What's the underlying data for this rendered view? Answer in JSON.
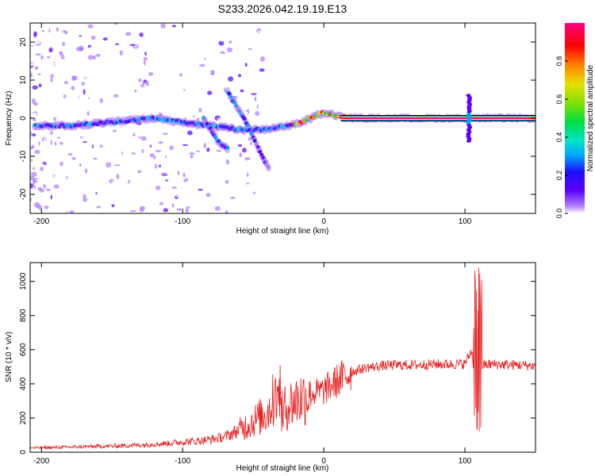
{
  "title": "S233.2026.042.19.19.E13",
  "chart_data": [
    {
      "type": "heatmap",
      "xlabel": "Height of straight line (km)",
      "ylabel": "Frequency (Hz)",
      "xlim": [
        -208,
        150
      ],
      "ylim": [
        -25,
        25
      ],
      "x_ticks": [
        -200,
        -100,
        0,
        100
      ],
      "x_tick_labels": [
        "-200",
        "-100",
        "0",
        "100"
      ],
      "y_ticks": [
        -20,
        -10,
        0,
        10,
        20
      ],
      "y_tick_labels": [
        "-20",
        "-10",
        "0",
        "10",
        "20"
      ],
      "colorbar": {
        "label": "Normalized spectral amplitude",
        "range": [
          0,
          1
        ],
        "ticks": [
          0,
          0.2,
          0.4,
          0.6,
          0.8
        ],
        "tick_labels": [
          "0.0",
          "0.2",
          "0.4",
          "0.6",
          "0.8"
        ],
        "colormap": [
          "#ffffff",
          "#b07cff",
          "#5a00ff",
          "#1c10ff",
          "#00a0ff",
          "#00e5c8",
          "#00dd40",
          "#80e000",
          "#e8e000",
          "#ff8000",
          "#ff0000",
          "#ff0080"
        ]
      },
      "features": [
        {
          "label": "main trace",
          "points": [
            [
              -205,
              -2
            ],
            [
              -180,
              -2
            ],
            [
              -150,
              -1
            ],
            [
              -120,
              0
            ],
            [
              -100,
              -1
            ],
            [
              -80,
              -2
            ],
            [
              -60,
              -3
            ],
            [
              -40,
              -3
            ],
            [
              -25,
              -2
            ],
            [
              -15,
              -1
            ],
            [
              0,
              1.5
            ],
            [
              10,
              0.5
            ],
            [
              20,
              0
            ],
            [
              150,
              0
            ]
          ]
        },
        {
          "label": "dispersive branch",
          "points": [
            [
              -68,
              7
            ],
            [
              -55,
              -1
            ],
            [
              -45,
              -9
            ],
            [
              -38,
              -14
            ]
          ]
        },
        {
          "label": "dispersive branch 2",
          "points": [
            [
              -85,
              0
            ],
            [
              -75,
              -6
            ],
            [
              -68,
              -8
            ]
          ]
        },
        {
          "label": "spike",
          "x": 103,
          "f_range": [
            -6,
            6
          ]
        }
      ],
      "grid": false,
      "legend": "none"
    },
    {
      "type": "line",
      "xlabel": "Height of straight line (km)",
      "ylabel": "SNR (10 * v/v)",
      "xlim": [
        -208,
        150
      ],
      "ylim": [
        0,
        1110
      ],
      "x_ticks": [
        -200,
        -100,
        0,
        100
      ],
      "x_tick_labels": [
        "-200",
        "-100",
        "0",
        "100"
      ],
      "y_ticks": [
        0,
        200,
        400,
        600,
        800,
        1000
      ],
      "y_tick_labels": [
        "0",
        "200",
        "400",
        "600",
        "800",
        "1000"
      ],
      "line_color": "#e82020",
      "series": [
        {
          "x": [
            -208,
            -190,
            -170,
            -150,
            -130,
            -110,
            -100,
            -90,
            -80,
            -70,
            -60,
            -50,
            -40,
            -35,
            -30,
            -25,
            -20,
            -15,
            -10,
            -5,
            0,
            10,
            20,
            30,
            40,
            50,
            60,
            70,
            80,
            90,
            100,
            105,
            108,
            110,
            113,
            120,
            130,
            140,
            150
          ],
          "values": [
            25,
            28,
            32,
            36,
            42,
            52,
            60,
            65,
            75,
            90,
            130,
            180,
            230,
            320,
            230,
            280,
            300,
            320,
            340,
            350,
            360,
            420,
            470,
            495,
            505,
            510,
            510,
            512,
            515,
            515,
            518,
            600,
            250,
            500,
            510,
            515,
            512,
            510,
            505
          ]
        }
      ],
      "grid": false,
      "legend": "none"
    }
  ]
}
